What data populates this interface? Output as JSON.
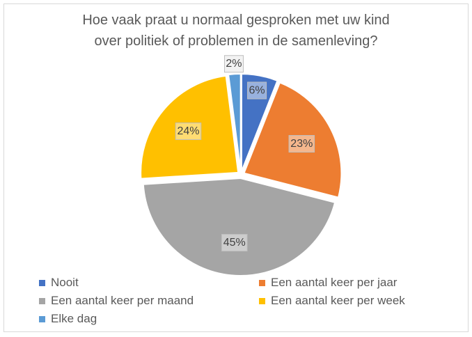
{
  "chart_data": {
    "type": "pie",
    "title_lines": [
      "Hoe vaak praat u normaal gesproken met uw kind",
      "over politiek of problemen in de samenleving?"
    ],
    "categories": [
      "Nooit",
      "Een aantal keer per jaar",
      "Een aantal keer per maand",
      "Een aantal keer per week",
      "Elke dag"
    ],
    "values": [
      6,
      23,
      45,
      24,
      2
    ],
    "data_labels": [
      "6%",
      "23%",
      "45%",
      "24%",
      "2%"
    ],
    "colors": [
      "#4472C4",
      "#ED7D31",
      "#A5A5A5",
      "#FFC000",
      "#5B9BD5"
    ],
    "legend_position": "bottom"
  }
}
